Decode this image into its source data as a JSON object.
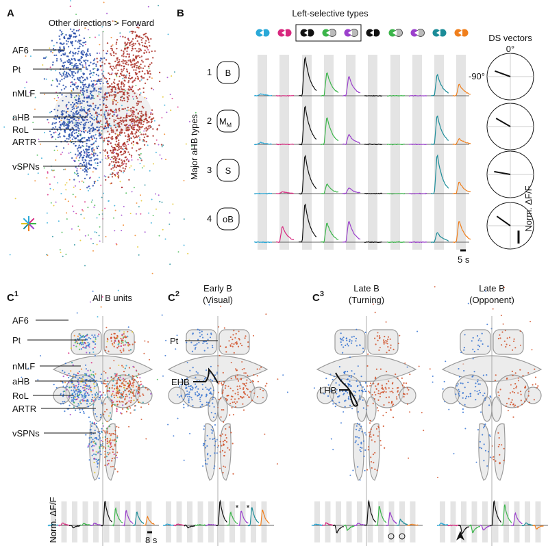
{
  "panel_a": {
    "letter": "A",
    "title": "Other directions > Forward",
    "labels": [
      "AF6",
      "Pt",
      "nMLF",
      "aHB",
      "RoL",
      "ARTR",
      "vSPNs"
    ]
  },
  "panel_b": {
    "letter": "B",
    "header": "Left-selective types",
    "ds_title": "DS vectors",
    "angle_top": "0°",
    "angle_left": "-90°",
    "y_label": "Major aHB types",
    "rows": [
      {
        "number": "1",
        "name": "B"
      },
      {
        "number": "2",
        "name": "M",
        "subscript": "M"
      },
      {
        "number": "3",
        "name": "S"
      },
      {
        "number": "4",
        "name": "oB"
      }
    ],
    "scale_y": "Norm. ΔF/F",
    "scale_x": "5 s"
  },
  "panel_c": [
    {
      "letter": "C",
      "superscript": "1",
      "title": [
        "All B units"
      ],
      "labels": [
        "AF6",
        "Pt",
        "nMLF",
        "aHB",
        "RoL",
        "ARTR",
        "vSPNs"
      ],
      "y_label": "Norm. ΔF/F",
      "scale_x": "8 s"
    },
    {
      "letter": "C",
      "superscript": "2",
      "title": [
        "Early B",
        "(Visual)"
      ],
      "labels": [
        "Pt",
        "EHB"
      ],
      "marks": [
        "*",
        "*"
      ]
    },
    {
      "letter": "C",
      "superscript": "3",
      "title": [
        "Late B",
        "(Turning)"
      ],
      "labels": [
        "LHB"
      ]
    },
    {
      "title": [
        "Late B",
        "(Opponent)"
      ]
    }
  ]
}
